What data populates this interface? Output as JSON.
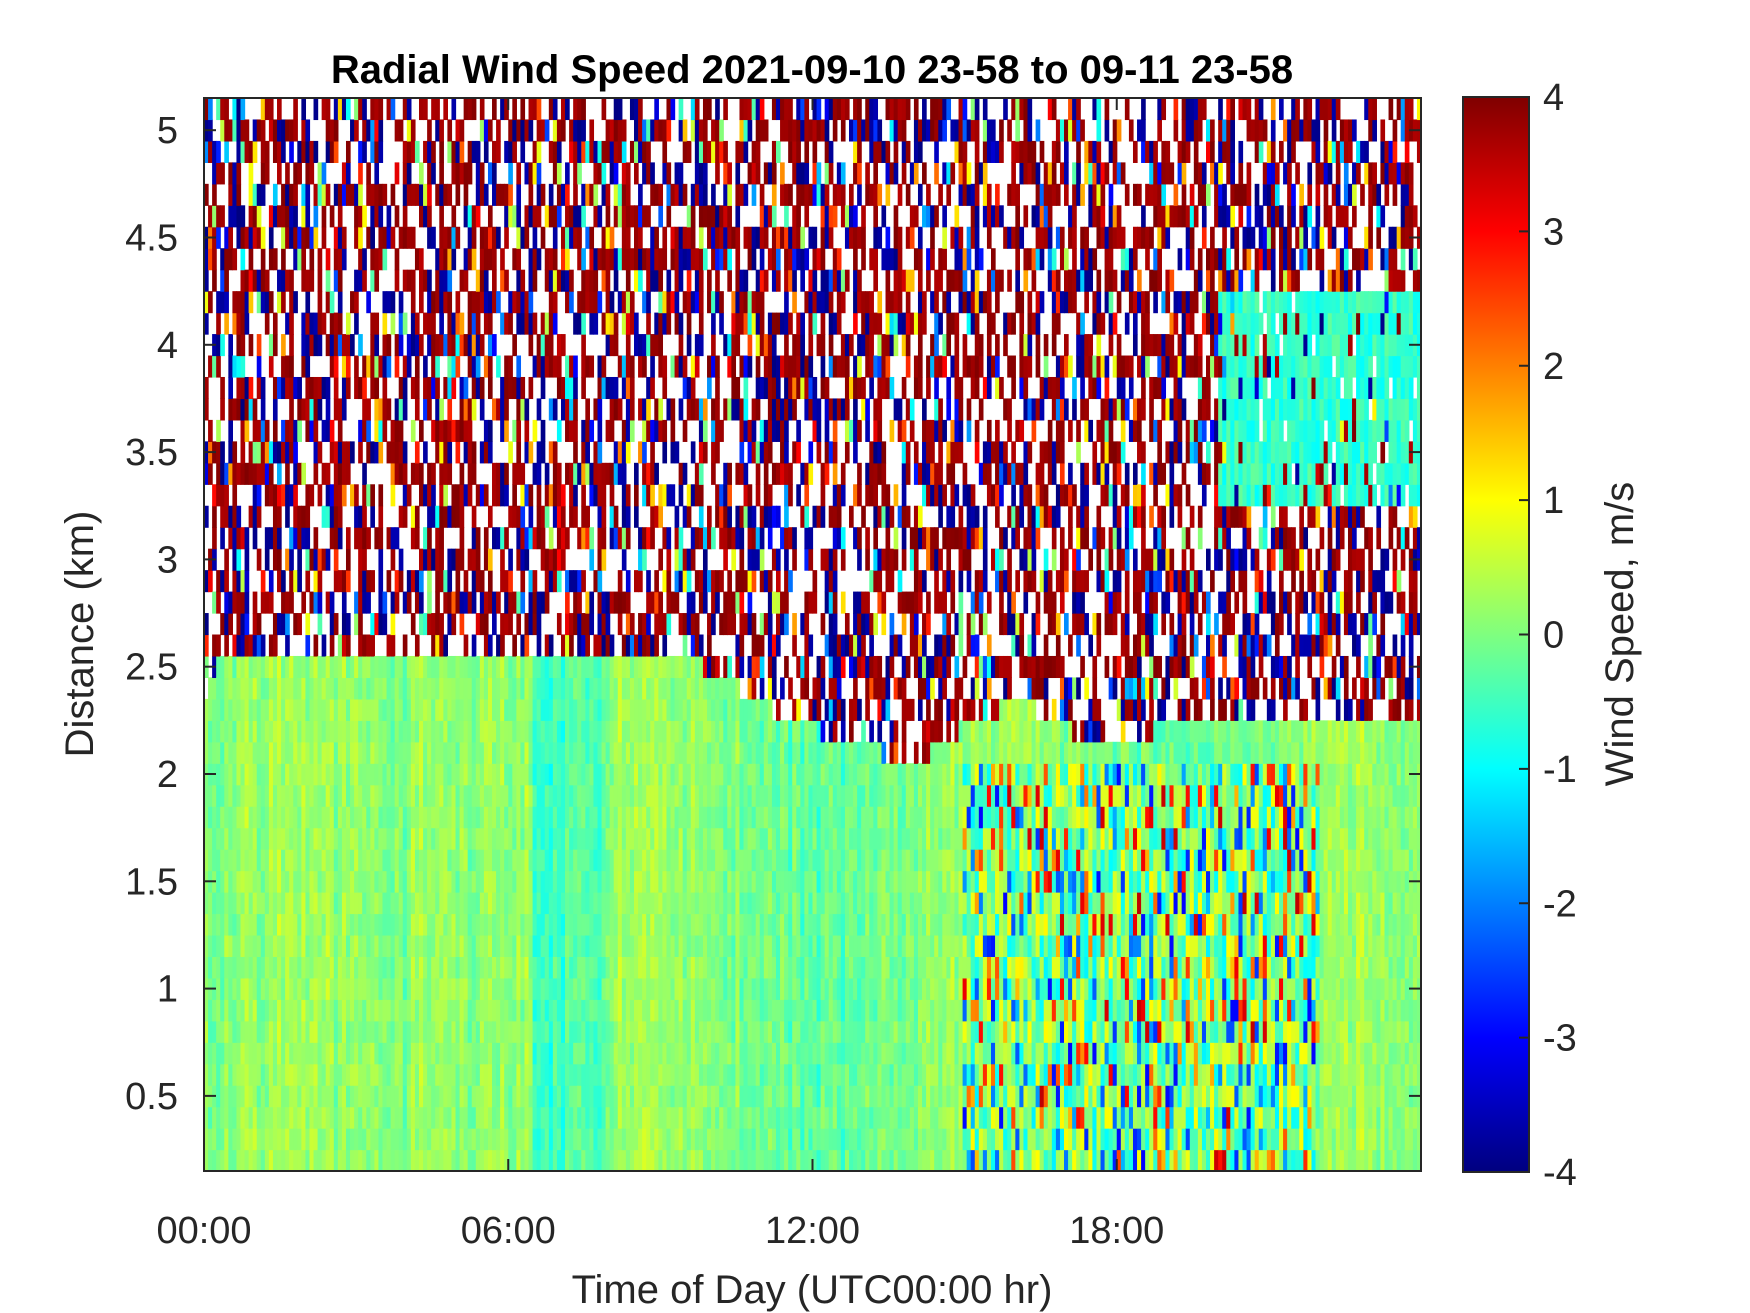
{
  "chart_data": {
    "type": "heatmap",
    "title": "Radial Wind Speed 2021-09-10 23-58 to 09-11 23-58",
    "xlabel": "Time of Day (UTC00:00 hr)",
    "ylabel": "Distance (km)",
    "colorbar_label": "Wind Speed, m/s",
    "colormap": "jet",
    "colors": {
      "low": "#00007f",
      "mid": "#7fff7f",
      "high": "#7f0000"
    },
    "x_ticks": [
      "00:00",
      "06:00",
      "12:00",
      "18:00"
    ],
    "x_tick_hours": [
      0,
      6,
      12,
      18
    ],
    "xlim_hours": [
      0,
      24
    ],
    "y_ticks": [
      "0.5",
      "1",
      "1.5",
      "2",
      "2.5",
      "3",
      "3.5",
      "4",
      "4.5",
      "5"
    ],
    "y_tick_values": [
      0.5,
      1,
      1.5,
      2,
      2.5,
      3,
      3.5,
      4,
      4.5,
      5
    ],
    "ylim": [
      0.15,
      5.15
    ],
    "c_ticks": [
      "-4",
      "-3",
      "-2",
      "-1",
      "0",
      "1",
      "2",
      "3",
      "4"
    ],
    "c_tick_values": [
      -4,
      -3,
      -2,
      -1,
      0,
      1,
      2,
      3,
      4
    ],
    "clim": [
      -4,
      4
    ],
    "regions": [
      {
        "description": "coherent low-level wind field",
        "time_range_hours": [
          0,
          24
        ],
        "distance_top_km": [
          [
            0,
            2.35
          ],
          [
            0.3,
            2.55
          ],
          [
            6,
            2.55
          ],
          [
            9.5,
            2.55
          ],
          [
            11.5,
            2.25
          ],
          [
            14,
            2.05
          ],
          [
            16,
            2.35
          ],
          [
            17.5,
            2.15
          ],
          [
            20,
            2.25
          ],
          [
            24,
            2.25
          ]
        ],
        "speed_range_ms": [
          -1,
          1
        ]
      },
      {
        "description": "convective turbulence",
        "time_range_hours": [
          15,
          22
        ],
        "distance_range_km": [
          0.15,
          2.0
        ],
        "speed_range_ms": [
          -3,
          3.5
        ]
      },
      {
        "description": "elevated coherent layer",
        "time_range_hours": [
          20,
          24
        ],
        "distance_range_km": [
          3.3,
          4.2
        ],
        "speed_range_ms": [
          -1,
          0.3
        ]
      },
      {
        "description": "noise above signal",
        "distance_range_km": [
          2.3,
          5.15
        ],
        "speed_range_ms": [
          -4,
          4
        ]
      }
    ]
  }
}
